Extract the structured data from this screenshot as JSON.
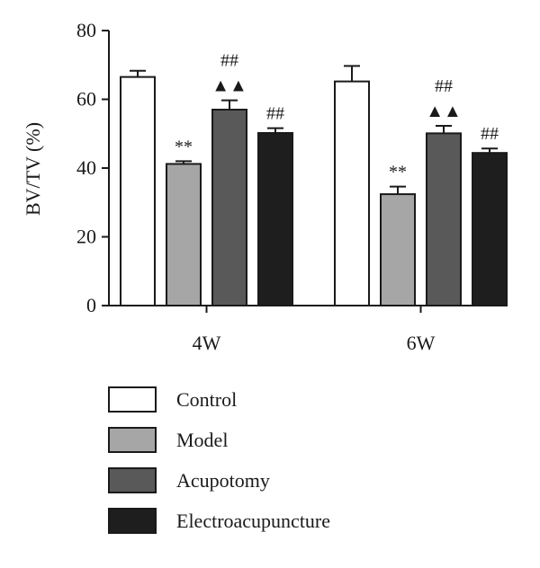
{
  "chart_data": {
    "type": "bar",
    "title": "",
    "xlabel": "",
    "ylabel": "BV/TV (%)",
    "ylim": [
      0,
      80
    ],
    "yticks": [
      0,
      20,
      40,
      60,
      80
    ],
    "categories": [
      "4W",
      "6W"
    ],
    "series": [
      {
        "name": "Control",
        "values": [
          66.5,
          65.2
        ],
        "errors": [
          1.8,
          4.5
        ],
        "color": "#ffffff",
        "annotations": [
          "",
          ""
        ]
      },
      {
        "name": "Model",
        "values": [
          41.2,
          32.4
        ],
        "errors": [
          0.8,
          2.2
        ],
        "color": "#a6a6a6",
        "annotations": [
          "**",
          "**"
        ]
      },
      {
        "name": "Acupotomy",
        "values": [
          57.0,
          50.1
        ],
        "errors": [
          2.7,
          2.2
        ],
        "color": "#595959",
        "annotations": [
          "##\n▲▲",
          "##\n▲▲"
        ]
      },
      {
        "name": "Electroacupuncture",
        "values": [
          50.2,
          44.4
        ],
        "errors": [
          1.4,
          1.3
        ],
        "color": "#1e1e1e",
        "annotations": [
          "##",
          "##"
        ]
      }
    ],
    "grid": false,
    "legend_position": "bottom"
  }
}
